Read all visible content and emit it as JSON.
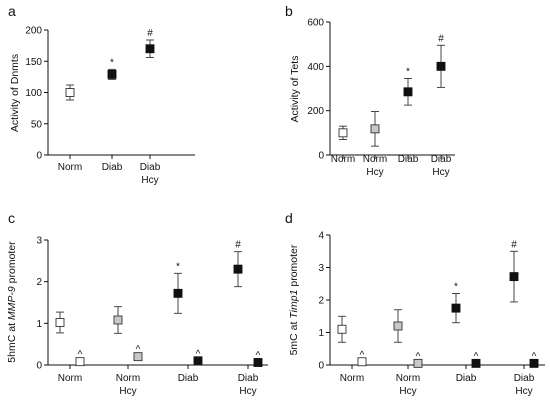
{
  "colors": {
    "open": "#ffffff",
    "grey": "#c8c8c8",
    "black": "#111111",
    "edge": "#333333"
  },
  "chart_data": [
    {
      "panel": "a",
      "type": "scatter",
      "ylabel": "Activity of Dnmts",
      "ylim": [
        0,
        200
      ],
      "yticks": [
        0,
        50,
        100,
        150,
        200
      ],
      "categories": [
        [
          "Norm"
        ],
        [
          "Diab"
        ],
        [
          "Diab",
          "Hcy"
        ]
      ],
      "points": [
        {
          "y": 100,
          "err": 12,
          "fill": "open",
          "sig": ""
        },
        {
          "y": 129,
          "err": 8,
          "fill": "black",
          "sig": "*"
        },
        {
          "y": 170,
          "err": 14,
          "fill": "black",
          "sig": "#"
        }
      ]
    },
    {
      "panel": "b",
      "type": "scatter",
      "ylabel": "Activity of Tets",
      "ylim": [
        0,
        600
      ],
      "yticks": [
        0,
        200,
        400,
        600
      ],
      "categories": [
        [
          "Norm"
        ],
        [
          "Norm",
          "Hcy"
        ],
        [
          "Diab"
        ],
        [
          "Diab",
          "Hcy"
        ]
      ],
      "points": [
        {
          "y": 100,
          "err": 30,
          "fill": "open",
          "sig": ""
        },
        {
          "y": 118,
          "err": 78,
          "fill": "grey",
          "sig": ""
        },
        {
          "y": 285,
          "err": 60,
          "fill": "black",
          "sig": "*"
        },
        {
          "y": 400,
          "err": 95,
          "fill": "black",
          "sig": "#"
        }
      ]
    },
    {
      "panel": "c",
      "type": "scatter",
      "ylabel_parts": [
        "5hmC at ",
        "MMP-9",
        " promoter"
      ],
      "ylim": [
        0,
        3
      ],
      "yticks": [
        0,
        1,
        2,
        3
      ],
      "categories": [
        [
          "Norm"
        ],
        [
          "Norm",
          "Hcy"
        ],
        [
          "Diab"
        ],
        [
          "Diab",
          "Hcy"
        ]
      ],
      "points": [
        {
          "group": 0,
          "y": 1.02,
          "err": 0.25,
          "fill": "open",
          "sig": ""
        },
        {
          "group": 0,
          "y": 0.08,
          "err": 0,
          "fill": "open",
          "sig": "^"
        },
        {
          "group": 1,
          "y": 1.08,
          "err": 0.32,
          "fill": "grey",
          "sig": ""
        },
        {
          "group": 1,
          "y": 0.2,
          "err": 0,
          "fill": "grey",
          "sig": "^"
        },
        {
          "group": 2,
          "y": 1.72,
          "err": 0.48,
          "fill": "black",
          "sig": "*"
        },
        {
          "group": 2,
          "y": 0.1,
          "err": 0,
          "fill": "black",
          "sig": "^"
        },
        {
          "group": 3,
          "y": 2.3,
          "err": 0.42,
          "fill": "black",
          "sig": "#"
        },
        {
          "group": 3,
          "y": 0.06,
          "err": 0,
          "fill": "black",
          "sig": "^"
        }
      ]
    },
    {
      "panel": "d",
      "type": "scatter",
      "ylabel_parts": [
        "5mC at ",
        "Timp1",
        " promoter"
      ],
      "ylim": [
        0,
        4
      ],
      "yticks": [
        0,
        1,
        2,
        3,
        4
      ],
      "categories": [
        [
          "Norm"
        ],
        [
          "Norm",
          "Hcy"
        ],
        [
          "Diab"
        ],
        [
          "Diab",
          "Hcy"
        ]
      ],
      "points": [
        {
          "group": 0,
          "y": 1.1,
          "err": 0.4,
          "fill": "open",
          "sig": ""
        },
        {
          "group": 0,
          "y": 0.1,
          "err": 0,
          "fill": "open",
          "sig": "^"
        },
        {
          "group": 1,
          "y": 1.2,
          "err": 0.5,
          "fill": "grey",
          "sig": ""
        },
        {
          "group": 1,
          "y": 0.05,
          "err": 0,
          "fill": "grey",
          "sig": "^"
        },
        {
          "group": 2,
          "y": 1.75,
          "err": 0.45,
          "fill": "black",
          "sig": "*"
        },
        {
          "group": 2,
          "y": 0.05,
          "err": 0,
          "fill": "black",
          "sig": "^"
        },
        {
          "group": 3,
          "y": 2.72,
          "err": 0.78,
          "fill": "black",
          "sig": "#"
        },
        {
          "group": 3,
          "y": 0.05,
          "err": 0,
          "fill": "black",
          "sig": "^"
        }
      ]
    }
  ]
}
